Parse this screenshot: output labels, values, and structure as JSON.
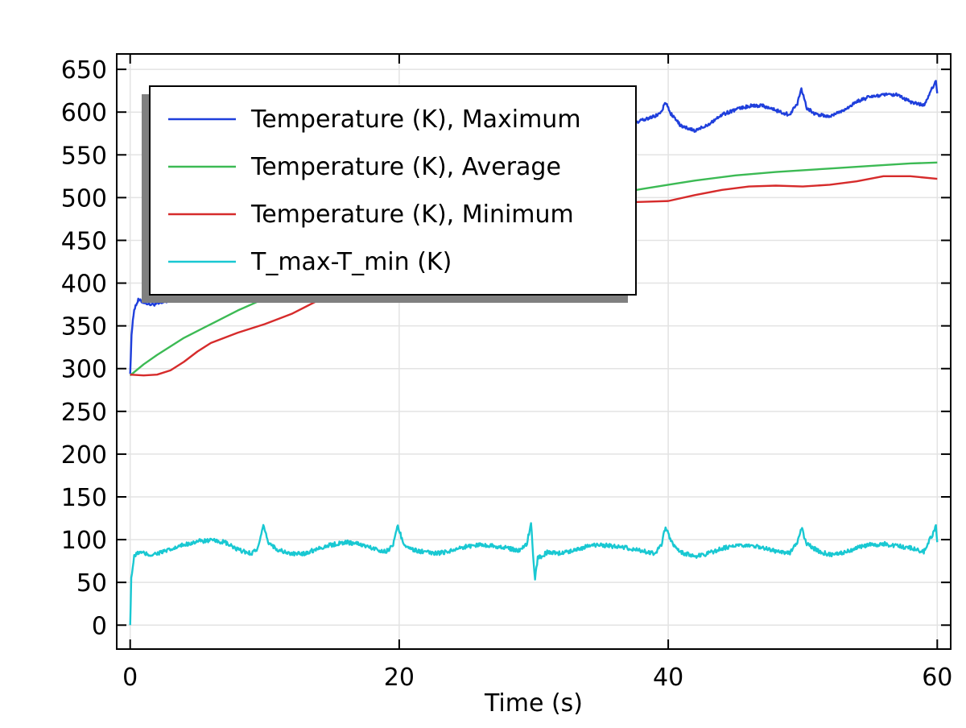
{
  "chart_data": {
    "type": "line",
    "title": "",
    "xlabel": "Time (s)",
    "ylabel": "",
    "xlim": [
      -1,
      61
    ],
    "ylim": [
      -28,
      668
    ],
    "x_ticks": [
      0,
      20,
      40,
      60
    ],
    "y_ticks": [
      0,
      50,
      100,
      150,
      200,
      250,
      300,
      350,
      400,
      450,
      500,
      550,
      600,
      650
    ],
    "grid": true,
    "legend_position": "top-left",
    "series": [
      {
        "name": "Temperature (K), Maximum",
        "color": "#1f3fdc",
        "noise": 2,
        "points": [
          [
            0,
            294
          ],
          [
            0.1,
            340
          ],
          [
            0.3,
            370
          ],
          [
            0.6,
            380
          ],
          [
            1,
            378
          ],
          [
            1.5,
            375
          ],
          [
            2.2,
            376
          ],
          [
            3,
            380
          ],
          [
            4,
            392
          ],
          [
            5,
            405
          ],
          [
            6,
            418
          ],
          [
            7,
            428
          ],
          [
            8,
            435
          ],
          [
            9,
            442
          ],
          [
            9.6,
            448
          ],
          [
            9.9,
            468
          ],
          [
            10.3,
            452
          ],
          [
            11,
            448
          ],
          [
            12,
            455
          ],
          [
            13,
            462
          ],
          [
            14,
            470
          ],
          [
            15,
            478
          ],
          [
            16,
            485
          ],
          [
            17,
            490
          ],
          [
            18,
            495
          ],
          [
            19,
            502
          ],
          [
            19.6,
            508
          ],
          [
            19.9,
            528
          ],
          [
            20.3,
            512
          ],
          [
            21,
            508
          ],
          [
            22,
            512
          ],
          [
            23,
            518
          ],
          [
            24,
            525
          ],
          [
            25,
            530
          ],
          [
            26,
            536
          ],
          [
            27,
            542
          ],
          [
            28,
            548
          ],
          [
            29,
            552
          ],
          [
            29.6,
            556
          ],
          [
            29.9,
            572
          ],
          [
            30.2,
            548
          ],
          [
            30.6,
            556
          ],
          [
            31,
            558
          ],
          [
            32,
            563
          ],
          [
            33,
            568
          ],
          [
            34,
            572
          ],
          [
            35,
            576
          ],
          [
            36,
            580
          ],
          [
            37,
            584
          ],
          [
            38,
            590
          ],
          [
            39,
            595
          ],
          [
            39.5,
            600
          ],
          [
            39.8,
            612
          ],
          [
            40.2,
            598
          ],
          [
            41,
            583
          ],
          [
            42,
            578
          ],
          [
            43,
            586
          ],
          [
            44,
            597
          ],
          [
            45,
            603
          ],
          [
            46,
            607
          ],
          [
            47,
            608
          ],
          [
            48,
            602
          ],
          [
            49,
            597
          ],
          [
            49.6,
            610
          ],
          [
            49.9,
            628
          ],
          [
            50.3,
            605
          ],
          [
            51,
            597
          ],
          [
            52,
            595
          ],
          [
            53,
            602
          ],
          [
            54,
            612
          ],
          [
            55,
            618
          ],
          [
            56,
            620
          ],
          [
            57,
            620
          ],
          [
            58,
            612
          ],
          [
            59,
            608
          ],
          [
            59.7,
            630
          ],
          [
            59.9,
            638
          ],
          [
            60,
            622
          ]
        ]
      },
      {
        "name": "Temperature (K), Average",
        "color": "#3cba54",
        "noise": 0,
        "points": [
          [
            0,
            292
          ],
          [
            1,
            305
          ],
          [
            2,
            316
          ],
          [
            4,
            336
          ],
          [
            6,
            352
          ],
          [
            8,
            368
          ],
          [
            10,
            382
          ],
          [
            12,
            395
          ],
          [
            15,
            413
          ],
          [
            20,
            440
          ],
          [
            25,
            465
          ],
          [
            30,
            486
          ],
          [
            35,
            502
          ],
          [
            38,
            510
          ],
          [
            40,
            515
          ],
          [
            42,
            520
          ],
          [
            45,
            526
          ],
          [
            48,
            530
          ],
          [
            50,
            532
          ],
          [
            52,
            534
          ],
          [
            55,
            537
          ],
          [
            58,
            540
          ],
          [
            60,
            541
          ]
        ]
      },
      {
        "name": "Temperature (K), Minimum",
        "color": "#d62b2b",
        "noise": 0,
        "points": [
          [
            0,
            293
          ],
          [
            1,
            292
          ],
          [
            2,
            293
          ],
          [
            3,
            298
          ],
          [
            4,
            308
          ],
          [
            5,
            320
          ],
          [
            6,
            330
          ],
          [
            8,
            342
          ],
          [
            10,
            352
          ],
          [
            12,
            364
          ],
          [
            15,
            388
          ],
          [
            20,
            428
          ],
          [
            25,
            460
          ],
          [
            30,
            482
          ],
          [
            35,
            494
          ],
          [
            38,
            495
          ],
          [
            40,
            496
          ],
          [
            42,
            503
          ],
          [
            44,
            509
          ],
          [
            46,
            513
          ],
          [
            48,
            514
          ],
          [
            50,
            513
          ],
          [
            52,
            515
          ],
          [
            54,
            519
          ],
          [
            56,
            525
          ],
          [
            58,
            525
          ],
          [
            60,
            522
          ]
        ]
      },
      {
        "name": "T_max-T_min (K)",
        "color": "#19c8d2",
        "noise": 2.5,
        "points": [
          [
            0,
            0
          ],
          [
            0.08,
            55
          ],
          [
            0.3,
            80
          ],
          [
            0.6,
            85
          ],
          [
            1,
            84
          ],
          [
            1.5,
            82
          ],
          [
            2,
            84
          ],
          [
            3,
            88
          ],
          [
            4,
            94
          ],
          [
            5,
            98
          ],
          [
            6,
            99
          ],
          [
            7,
            97
          ],
          [
            8,
            88
          ],
          [
            9,
            84
          ],
          [
            9.5,
            90
          ],
          [
            9.9,
            115
          ],
          [
            10.3,
            96
          ],
          [
            11,
            88
          ],
          [
            12,
            83
          ],
          [
            13,
            84
          ],
          [
            14,
            90
          ],
          [
            15,
            94
          ],
          [
            16,
            97
          ],
          [
            17,
            95
          ],
          [
            18,
            90
          ],
          [
            19,
            86
          ],
          [
            19.5,
            92
          ],
          [
            19.9,
            116
          ],
          [
            20.3,
            96
          ],
          [
            21,
            88
          ],
          [
            22,
            85
          ],
          [
            23,
            84
          ],
          [
            24,
            88
          ],
          [
            25,
            92
          ],
          [
            26,
            94
          ],
          [
            27,
            93
          ],
          [
            28,
            90
          ],
          [
            29,
            87
          ],
          [
            29.5,
            96
          ],
          [
            29.8,
            120
          ],
          [
            30,
            72
          ],
          [
            30.1,
            55
          ],
          [
            30.3,
            78
          ],
          [
            31,
            85
          ],
          [
            32,
            84
          ],
          [
            33,
            88
          ],
          [
            34,
            92
          ],
          [
            35,
            94
          ],
          [
            36,
            92
          ],
          [
            37,
            90
          ],
          [
            38,
            87
          ],
          [
            39,
            84
          ],
          [
            39.5,
            94
          ],
          [
            39.8,
            115
          ],
          [
            40.2,
            97
          ],
          [
            41,
            85
          ],
          [
            42,
            80
          ],
          [
            43,
            84
          ],
          [
            44,
            90
          ],
          [
            45,
            92
          ],
          [
            46,
            93
          ],
          [
            47,
            91
          ],
          [
            48,
            86
          ],
          [
            49,
            84
          ],
          [
            49.6,
            96
          ],
          [
            49.9,
            114
          ],
          [
            50.3,
            95
          ],
          [
            51,
            88
          ],
          [
            52,
            82
          ],
          [
            53,
            85
          ],
          [
            54,
            90
          ],
          [
            55,
            94
          ],
          [
            56,
            95
          ],
          [
            57,
            93
          ],
          [
            58,
            90
          ],
          [
            59,
            86
          ],
          [
            59.7,
            108
          ],
          [
            59.9,
            115
          ],
          [
            60,
            97
          ]
        ]
      }
    ]
  }
}
